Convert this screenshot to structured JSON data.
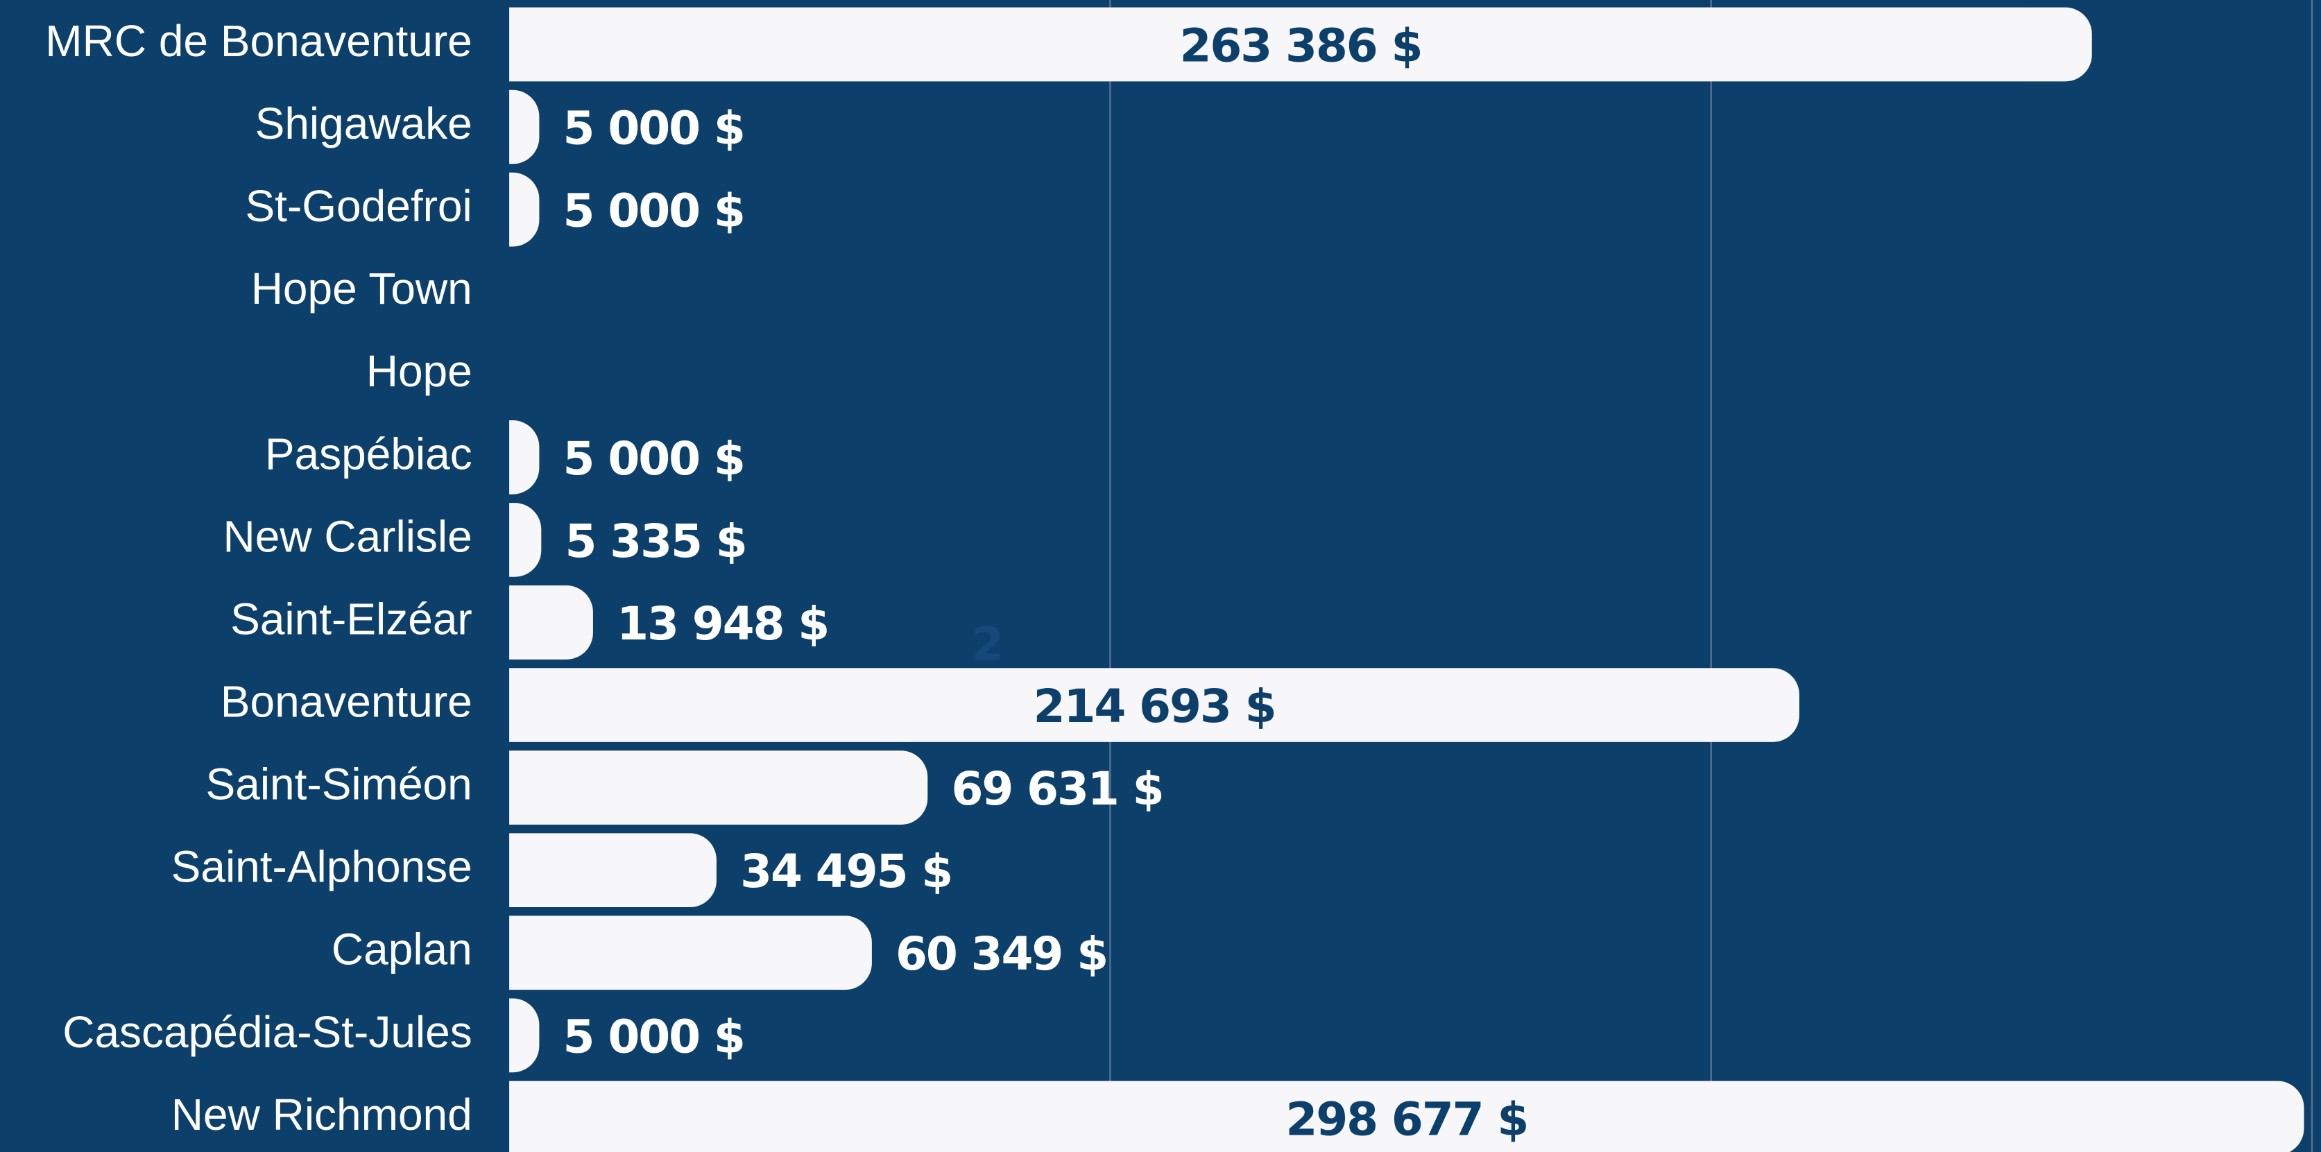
{
  "chart_data": {
    "type": "bar",
    "orientation": "horizontal",
    "categories": [
      "MRC de Bonaventure",
      "Shigawake",
      "St-Godefroi",
      "Hope Town",
      "Hope",
      "Paspébiac",
      "New Carlisle",
      "Saint-Elzéar",
      "Bonaventure",
      "Saint-Siméon",
      "Saint-Alphonse",
      "Caplan",
      "Cascapédia-St-Jules",
      "New Richmond"
    ],
    "values": [
      263386,
      5000,
      5000,
      null,
      null,
      5000,
      5335,
      13948,
      214693,
      69631,
      34495,
      60349,
      5000,
      298677
    ],
    "value_labels": [
      "263 386 $",
      "5 000 $",
      "5 000 $",
      null,
      null,
      "5 000 $",
      "5 335 $",
      "13 948 $",
      "214 693 $",
      "69 631 $",
      "34 495 $",
      "60 349 $",
      "5 000 $",
      "298 677 $"
    ],
    "color": "#f7f6f9",
    "xlim": [
      0,
      301500
    ],
    "xticks": [
      100000,
      200000,
      300000
    ],
    "grid": true,
    "annotations": [
      {
        "text": "2",
        "x": 79500,
        "y": 7.3
      }
    ]
  }
}
